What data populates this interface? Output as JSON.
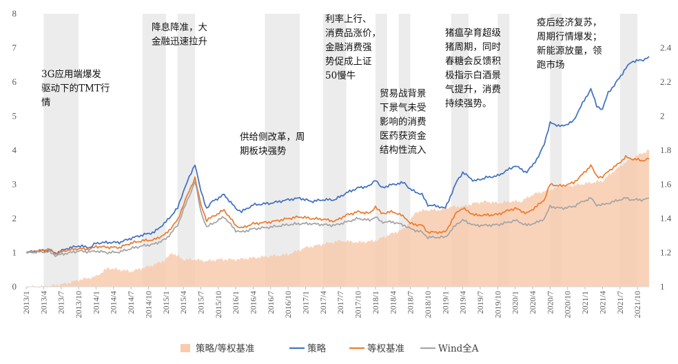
{
  "chart_data": {
    "type": "line",
    "title": "",
    "xlabel": "",
    "ylabel": "",
    "x_ticks": [
      "2013/1",
      "2013/4",
      "2013/7",
      "2013/10",
      "2014/1",
      "2014/4",
      "2014/7",
      "2014/10",
      "2015/1",
      "2015/4",
      "2015/7",
      "2015/10",
      "2016/1",
      "2016/4",
      "2016/7",
      "2016/10",
      "2017/1",
      "2017/4",
      "2017/7",
      "2017/10",
      "2018/1",
      "2018/4",
      "2018/7",
      "2018/10",
      "2019/1",
      "2019/4",
      "2019/7",
      "2019/10",
      "2020/1",
      "2020/4",
      "2020/7",
      "2020/10",
      "2021/1",
      "2021/4",
      "2021/7",
      "2021/10"
    ],
    "y_left": {
      "range": [
        0,
        8
      ],
      "ticks": [
        "0",
        "1",
        "2",
        "3",
        "4",
        "5",
        "6",
        "7",
        "8"
      ]
    },
    "y_right": {
      "range": [
        1,
        2.6
      ],
      "ticks": [
        "1",
        "1.2",
        "1.4",
        "1.6",
        "1.8",
        "2",
        "2.2",
        "2.4"
      ]
    },
    "grid": false,
    "legend_position": "bottom",
    "shaded_periods": [
      [
        "2013/4",
        "2013/10"
      ],
      [
        "2014/9",
        "2015/1"
      ],
      [
        "2015/3",
        "2015/6"
      ],
      [
        "2016/6",
        "2016/12"
      ],
      [
        "2017/4",
        "2017/8"
      ],
      [
        "2018/1",
        "2018/3"
      ],
      [
        "2018/5",
        "2018/7"
      ],
      [
        "2019/2",
        "2019/5"
      ],
      [
        "2019/10",
        "2019/12"
      ],
      [
        "2020/7",
        "2020/9"
      ],
      [
        "2021/7",
        "2021/10"
      ]
    ],
    "series": [
      {
        "name": "策略/等权基准",
        "type": "area",
        "axis": "right",
        "color": "#F8CBAD",
        "points": [
          [
            "2013/1",
            1.0
          ],
          [
            "2013/4",
            1.0
          ],
          [
            "2013/6",
            1.01
          ],
          [
            "2013/8",
            1.02
          ],
          [
            "2013/10",
            1.04
          ],
          [
            "2014/1",
            1.06
          ],
          [
            "2014/3",
            1.11
          ],
          [
            "2014/5",
            1.1
          ],
          [
            "2014/7",
            1.09
          ],
          [
            "2014/9",
            1.11
          ],
          [
            "2014/11",
            1.13
          ],
          [
            "2015/1",
            1.16
          ],
          [
            "2015/2",
            1.2
          ],
          [
            "2015/4",
            1.16
          ],
          [
            "2015/6",
            1.16
          ],
          [
            "2015/8",
            1.15
          ],
          [
            "2015/10",
            1.16
          ],
          [
            "2016/1",
            1.16
          ],
          [
            "2016/4",
            1.17
          ],
          [
            "2016/7",
            1.18
          ],
          [
            "2016/10",
            1.19
          ],
          [
            "2017/1",
            1.23
          ],
          [
            "2017/4",
            1.25
          ],
          [
            "2017/7",
            1.27
          ],
          [
            "2017/10",
            1.26
          ],
          [
            "2018/1",
            1.27
          ],
          [
            "2018/3",
            1.3
          ],
          [
            "2018/6",
            1.34
          ],
          [
            "2018/8",
            1.44
          ],
          [
            "2018/10",
            1.45
          ],
          [
            "2018/12",
            1.45
          ],
          [
            "2019/2",
            1.47
          ],
          [
            "2019/4",
            1.47
          ],
          [
            "2019/6",
            1.49
          ],
          [
            "2019/8",
            1.5
          ],
          [
            "2019/10",
            1.49
          ],
          [
            "2019/12",
            1.5
          ],
          [
            "2020/2",
            1.5
          ],
          [
            "2020/4",
            1.54
          ],
          [
            "2020/6",
            1.56
          ],
          [
            "2020/8",
            1.58
          ],
          [
            "2020/10",
            1.59
          ],
          [
            "2020/12",
            1.6
          ],
          [
            "2021/2",
            1.61
          ],
          [
            "2021/4",
            1.62
          ],
          [
            "2021/6",
            1.68
          ],
          [
            "2021/8",
            1.73
          ],
          [
            "2021/10",
            1.77
          ],
          [
            "2021/12",
            1.8
          ]
        ]
      },
      {
        "name": "策略",
        "type": "line",
        "axis": "left",
        "color": "#4472C4",
        "points": [
          [
            "2013/1",
            1.0
          ],
          [
            "2013/3",
            1.05
          ],
          [
            "2013/5",
            1.08
          ],
          [
            "2013/6",
            0.98
          ],
          [
            "2013/8",
            1.12
          ],
          [
            "2013/10",
            1.2
          ],
          [
            "2013/12",
            1.15
          ],
          [
            "2014/1",
            1.28
          ],
          [
            "2014/3",
            1.3
          ],
          [
            "2014/5",
            1.3
          ],
          [
            "2014/7",
            1.42
          ],
          [
            "2014/9",
            1.52
          ],
          [
            "2014/11",
            1.6
          ],
          [
            "2015/1",
            1.9
          ],
          [
            "2015/3",
            2.3
          ],
          [
            "2015/4",
            2.8
          ],
          [
            "2015/5",
            3.2
          ],
          [
            "2015/6",
            3.6
          ],
          [
            "2015/7",
            2.8
          ],
          [
            "2015/8",
            2.3
          ],
          [
            "2015/9",
            2.5
          ],
          [
            "2015/11",
            2.7
          ],
          [
            "2016/1",
            2.3
          ],
          [
            "2016/2",
            2.2
          ],
          [
            "2016/4",
            2.4
          ],
          [
            "2016/7",
            2.45
          ],
          [
            "2016/10",
            2.55
          ],
          [
            "2016/12",
            2.6
          ],
          [
            "2017/2",
            2.5
          ],
          [
            "2017/4",
            2.55
          ],
          [
            "2017/6",
            2.55
          ],
          [
            "2017/8",
            2.75
          ],
          [
            "2017/10",
            2.9
          ],
          [
            "2017/12",
            2.95
          ],
          [
            "2018/1",
            3.15
          ],
          [
            "2018/2",
            2.9
          ],
          [
            "2018/4",
            3.0
          ],
          [
            "2018/6",
            3.05
          ],
          [
            "2018/7",
            2.85
          ],
          [
            "2018/9",
            2.7
          ],
          [
            "2018/10",
            2.4
          ],
          [
            "2018/12",
            2.35
          ],
          [
            "2019/1",
            2.3
          ],
          [
            "2019/3",
            3.1
          ],
          [
            "2019/4",
            3.35
          ],
          [
            "2019/6",
            3.1
          ],
          [
            "2019/8",
            3.2
          ],
          [
            "2019/10",
            3.25
          ],
          [
            "2019/12",
            3.45
          ],
          [
            "2020/1",
            3.55
          ],
          [
            "2020/3",
            3.35
          ],
          [
            "2020/5",
            3.8
          ],
          [
            "2020/6",
            4.2
          ],
          [
            "2020/7",
            4.8
          ],
          [
            "2020/9",
            4.7
          ],
          [
            "2020/11",
            4.85
          ],
          [
            "2020/12",
            5.2
          ],
          [
            "2021/2",
            5.8
          ],
          [
            "2021/3",
            5.3
          ],
          [
            "2021/4",
            5.2
          ],
          [
            "2021/5",
            5.7
          ],
          [
            "2021/6",
            5.9
          ],
          [
            "2021/8",
            6.4
          ],
          [
            "2021/9",
            6.6
          ],
          [
            "2021/11",
            6.65
          ],
          [
            "2021/12",
            6.75
          ]
        ]
      },
      {
        "name": "等权基准",
        "type": "line",
        "axis": "left",
        "color": "#ED7D31",
        "points": [
          [
            "2013/1",
            1.0
          ],
          [
            "2013/3",
            1.05
          ],
          [
            "2013/5",
            1.1
          ],
          [
            "2013/6",
            0.97
          ],
          [
            "2013/8",
            1.07
          ],
          [
            "2013/10",
            1.12
          ],
          [
            "2013/12",
            1.1
          ],
          [
            "2014/1",
            1.18
          ],
          [
            "2014/3",
            1.16
          ],
          [
            "2014/5",
            1.15
          ],
          [
            "2014/7",
            1.28
          ],
          [
            "2014/9",
            1.35
          ],
          [
            "2014/11",
            1.38
          ],
          [
            "2015/1",
            1.55
          ],
          [
            "2015/3",
            1.95
          ],
          [
            "2015/4",
            2.4
          ],
          [
            "2015/5",
            2.8
          ],
          [
            "2015/6",
            3.2
          ],
          [
            "2015/7",
            2.4
          ],
          [
            "2015/8",
            1.95
          ],
          [
            "2015/9",
            2.05
          ],
          [
            "2015/11",
            2.25
          ],
          [
            "2016/1",
            1.8
          ],
          [
            "2016/2",
            1.72
          ],
          [
            "2016/4",
            1.85
          ],
          [
            "2016/7",
            1.9
          ],
          [
            "2016/10",
            2.0
          ],
          [
            "2016/12",
            2.05
          ],
          [
            "2017/2",
            2.0
          ],
          [
            "2017/4",
            1.98
          ],
          [
            "2017/6",
            1.92
          ],
          [
            "2017/8",
            2.1
          ],
          [
            "2017/10",
            2.2
          ],
          [
            "2017/12",
            2.15
          ],
          [
            "2018/1",
            2.35
          ],
          [
            "2018/2",
            2.15
          ],
          [
            "2018/4",
            2.2
          ],
          [
            "2018/6",
            2.05
          ],
          [
            "2018/7",
            1.85
          ],
          [
            "2018/9",
            1.8
          ],
          [
            "2018/10",
            1.6
          ],
          [
            "2018/12",
            1.6
          ],
          [
            "2019/1",
            1.6
          ],
          [
            "2019/3",
            2.2
          ],
          [
            "2019/4",
            2.3
          ],
          [
            "2019/6",
            2.1
          ],
          [
            "2019/8",
            2.1
          ],
          [
            "2019/10",
            2.12
          ],
          [
            "2019/12",
            2.25
          ],
          [
            "2020/1",
            2.3
          ],
          [
            "2020/3",
            2.15
          ],
          [
            "2020/5",
            2.4
          ],
          [
            "2020/6",
            2.55
          ],
          [
            "2020/7",
            3.0
          ],
          [
            "2020/9",
            2.95
          ],
          [
            "2020/11",
            3.05
          ],
          [
            "2020/12",
            3.2
          ],
          [
            "2021/2",
            3.55
          ],
          [
            "2021/3",
            3.25
          ],
          [
            "2021/4",
            3.2
          ],
          [
            "2021/5",
            3.4
          ],
          [
            "2021/6",
            3.5
          ],
          [
            "2021/8",
            3.8
          ],
          [
            "2021/9",
            3.75
          ],
          [
            "2021/11",
            3.7
          ],
          [
            "2021/12",
            3.75
          ]
        ]
      },
      {
        "name": "Wind全A",
        "type": "line",
        "axis": "left",
        "color": "#A5A5A5",
        "points": [
          [
            "2013/1",
            1.0
          ],
          [
            "2013/3",
            1.02
          ],
          [
            "2013/5",
            1.02
          ],
          [
            "2013/6",
            0.92
          ],
          [
            "2013/8",
            0.98
          ],
          [
            "2013/10",
            1.05
          ],
          [
            "2013/12",
            1.02
          ],
          [
            "2014/1",
            1.05
          ],
          [
            "2014/3",
            1.0
          ],
          [
            "2014/5",
            1.02
          ],
          [
            "2014/7",
            1.12
          ],
          [
            "2014/9",
            1.2
          ],
          [
            "2014/11",
            1.25
          ],
          [
            "2015/1",
            1.4
          ],
          [
            "2015/3",
            1.8
          ],
          [
            "2015/4",
            2.25
          ],
          [
            "2015/5",
            2.65
          ],
          [
            "2015/6",
            3.1
          ],
          [
            "2015/7",
            2.2
          ],
          [
            "2015/8",
            1.75
          ],
          [
            "2015/9",
            1.85
          ],
          [
            "2015/11",
            2.05
          ],
          [
            "2016/1",
            1.65
          ],
          [
            "2016/2",
            1.6
          ],
          [
            "2016/4",
            1.7
          ],
          [
            "2016/7",
            1.75
          ],
          [
            "2016/10",
            1.82
          ],
          [
            "2016/12",
            1.85
          ],
          [
            "2017/2",
            1.85
          ],
          [
            "2017/4",
            1.82
          ],
          [
            "2017/6",
            1.8
          ],
          [
            "2017/8",
            1.9
          ],
          [
            "2017/10",
            2.0
          ],
          [
            "2017/12",
            1.95
          ],
          [
            "2018/1",
            2.05
          ],
          [
            "2018/2",
            1.9
          ],
          [
            "2018/4",
            1.9
          ],
          [
            "2018/6",
            1.8
          ],
          [
            "2018/7",
            1.7
          ],
          [
            "2018/9",
            1.6
          ],
          [
            "2018/10",
            1.45
          ],
          [
            "2018/12",
            1.45
          ],
          [
            "2019/1",
            1.45
          ],
          [
            "2019/3",
            1.85
          ],
          [
            "2019/4",
            1.95
          ],
          [
            "2019/6",
            1.8
          ],
          [
            "2019/8",
            1.8
          ],
          [
            "2019/10",
            1.82
          ],
          [
            "2019/12",
            1.9
          ],
          [
            "2020/1",
            1.95
          ],
          [
            "2020/3",
            1.8
          ],
          [
            "2020/5",
            1.9
          ],
          [
            "2020/6",
            2.0
          ],
          [
            "2020/7",
            2.35
          ],
          [
            "2020/9",
            2.3
          ],
          [
            "2020/11",
            2.35
          ],
          [
            "2020/12",
            2.45
          ],
          [
            "2021/2",
            2.6
          ],
          [
            "2021/3",
            2.4
          ],
          [
            "2021/4",
            2.4
          ],
          [
            "2021/5",
            2.45
          ],
          [
            "2021/6",
            2.5
          ],
          [
            "2021/8",
            2.6
          ],
          [
            "2021/9",
            2.55
          ],
          [
            "2021/11",
            2.55
          ],
          [
            "2021/12",
            2.6
          ]
        ]
      }
    ],
    "annotations": [
      {
        "lines": [
          "3G应用端爆发",
          "驱动下的TMT行",
          "情"
        ]
      },
      {
        "lines": [
          "降息降准，大",
          "金融迅速拉升"
        ]
      },
      {
        "lines": [
          "供给侧改革，周",
          "期板块强势"
        ]
      },
      {
        "lines": [
          "利率上行、",
          "消费品涨价，",
          "金融消费强",
          "势促成上证",
          "50慢牛"
        ]
      },
      {
        "lines": [
          "贸易战背景",
          "下景气未受",
          "影响的消费",
          "医药获资金",
          "结构性流入"
        ]
      },
      {
        "lines": [
          "猪瘟孕育超级",
          "猪周期，同时",
          "春糖会反馈积",
          "极指示白酒景",
          "气提升，消费",
          "持续强势。"
        ]
      },
      {
        "lines": [
          "疫后经济复苏，",
          "周期行情爆发；",
          "新能源放量，领",
          "跑市场"
        ]
      }
    ]
  }
}
